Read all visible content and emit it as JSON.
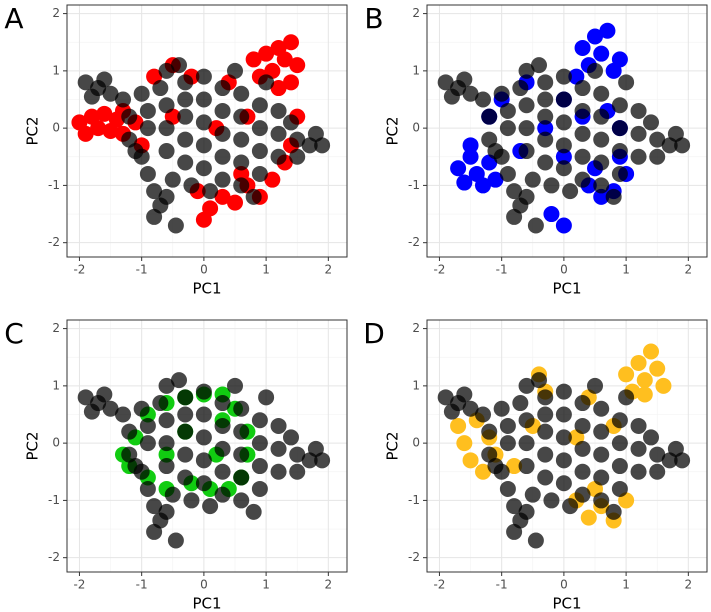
{
  "chart_data": [
    {
      "type": "scatter",
      "title": "A",
      "xlabel": "PC1",
      "ylabel": "PC2",
      "xlim": [
        -2.2,
        2.3
      ],
      "ylim": [
        -2.25,
        2.15
      ],
      "xticks": [
        -2,
        -1,
        0,
        1,
        2
      ],
      "yticks": [
        -2,
        -1,
        0,
        1,
        2
      ],
      "grid": true,
      "series": [
        {
          "color": "#ff0000",
          "opacity": 1,
          "x": [
            -2.0,
            -1.9,
            -1.8,
            -1.7,
            -1.6,
            -1.5,
            -1.4,
            -1.3,
            -1.3,
            -1.1,
            0.8,
            0.9,
            1.0,
            1.1,
            1.2,
            1.3,
            1.4,
            1.5,
            1.2,
            1.4,
            0.1,
            0.0,
            0.3,
            0.5,
            0.7,
            0.9,
            1.1,
            1.3,
            1.4,
            1.5,
            -0.1,
            0.6,
            -0.8,
            -0.5,
            -0.2,
            0.4,
            -0.5,
            0.2,
            0.7,
            -1.0
          ],
          "values": [
            0.1,
            -0.1,
            0.2,
            0.0,
            0.25,
            -0.05,
            0.15,
            0.3,
            -0.1,
            0.1,
            1.2,
            0.9,
            1.3,
            1.0,
            1.4,
            1.2,
            1.5,
            1.1,
            0.7,
            0.8,
            -1.4,
            -1.6,
            -1.2,
            -1.3,
            -1.0,
            -1.2,
            -0.9,
            -0.6,
            -0.3,
            0.2,
            -1.1,
            -0.8,
            0.9,
            1.1,
            0.9,
            0.8,
            0.2,
            0.0,
            0.2,
            -0.3
          ]
        },
        {
          "color": "#000000",
          "opacity": 0.72,
          "x": [
            -1.9,
            -1.7,
            -1.8,
            -1.5,
            -1.6,
            -1.3,
            -1.2,
            -1.2,
            -1.0,
            -0.9,
            -0.8,
            -0.7,
            -0.8,
            -0.6,
            -0.5,
            -1.0,
            -0.9,
            -0.9,
            -0.7,
            -0.6,
            -0.4,
            -0.3,
            -0.6,
            -0.6,
            -0.6,
            -0.3,
            -0.3,
            -0.3,
            -0.3,
            0.0,
            0.0,
            0.0,
            0.0,
            0.0,
            0.3,
            0.3,
            0.3,
            0.3,
            0.3,
            0.5,
            0.6,
            0.6,
            0.6,
            0.6,
            0.6,
            0.8,
            0.9,
            0.9,
            0.9,
            0.9,
            1.0,
            1.2,
            1.2,
            1.2,
            1.5,
            1.5,
            1.7,
            1.9,
            1.8,
            1.4,
            -0.2,
            0.1,
            -1.1,
            -0.45
          ],
          "values": [
            0.8,
            0.7,
            0.55,
            0.6,
            0.85,
            0.5,
            0.2,
            -0.2,
            -0.5,
            -0.8,
            -1.1,
            -1.35,
            -1.55,
            -1.2,
            -0.9,
            0.6,
            0.3,
            0.0,
            0.7,
            1.0,
            1.1,
            0.8,
            0.4,
            0.0,
            -0.4,
            -0.6,
            -0.2,
            0.2,
            0.5,
            0.9,
            0.5,
            0.1,
            -0.3,
            -0.7,
            -0.9,
            -0.5,
            -0.1,
            0.3,
            0.7,
            1.0,
            0.6,
            0.2,
            -0.2,
            -0.6,
            -1.0,
            -1.2,
            -0.8,
            -0.4,
            0.0,
            0.4,
            0.8,
            0.3,
            -0.1,
            -0.5,
            -0.2,
            -0.5,
            -0.3,
            -0.3,
            -0.1,
            0.1,
            -1.0,
            -1.1,
            -0.4,
            -1.7
          ]
        }
      ]
    },
    {
      "type": "scatter",
      "title": "B",
      "xlabel": "PC1",
      "ylabel": "PC2",
      "xlim": [
        -2.2,
        2.3
      ],
      "ylim": [
        -2.25,
        2.15
      ],
      "xticks": [
        -2,
        -1,
        0,
        1,
        2
      ],
      "yticks": [
        -2,
        -1,
        0,
        1,
        2
      ],
      "grid": true,
      "series": [
        {
          "color": "#0000ff",
          "opacity": 1,
          "x": [
            -1.7,
            -1.6,
            -1.5,
            -1.4,
            -1.3,
            -1.2,
            -1.1,
            -1.5,
            0.3,
            0.5,
            0.6,
            0.7,
            0.4,
            0.8,
            0.2,
            0.9,
            0.4,
            0.6,
            0.8,
            1.0,
            0.9,
            0.5,
            -0.2,
            0.0,
            -1.0,
            -0.6,
            0.0,
            -0.3,
            0.3,
            -0.7,
            0.0,
            0.7,
            -1.2,
            0.9
          ],
          "values": [
            -0.7,
            -0.95,
            -0.5,
            -0.8,
            -1.0,
            -0.6,
            -0.9,
            -0.3,
            1.4,
            1.6,
            1.3,
            1.7,
            1.1,
            1.0,
            0.9,
            1.2,
            -1.0,
            -1.2,
            -1.1,
            -0.8,
            -0.5,
            -0.7,
            -1.5,
            -1.7,
            0.5,
            0.8,
            0.5,
            0.0,
            0.2,
            -0.4,
            -0.5,
            0.3,
            0.2,
            0.0
          ]
        },
        {
          "color": "#000000",
          "opacity": 0.72,
          "x": [
            -1.9,
            -1.7,
            -1.8,
            -1.5,
            -1.6,
            -1.3,
            -1.2,
            -1.2,
            -1.0,
            -0.9,
            -0.8,
            -0.7,
            -0.8,
            -0.6,
            -0.5,
            -1.0,
            -0.9,
            -0.9,
            -0.7,
            -0.6,
            -0.4,
            -0.3,
            -0.6,
            -0.6,
            -0.6,
            -0.3,
            -0.3,
            -0.3,
            -0.3,
            0.0,
            0.0,
            0.0,
            0.0,
            0.0,
            0.3,
            0.3,
            0.3,
            0.3,
            0.3,
            0.5,
            0.6,
            0.6,
            0.6,
            0.6,
            0.6,
            0.8,
            0.9,
            0.9,
            0.9,
            0.9,
            1.0,
            1.2,
            1.2,
            1.2,
            1.5,
            1.5,
            1.7,
            1.9,
            1.8,
            1.4,
            -0.2,
            0.1,
            -1.1,
            -0.45
          ],
          "values": [
            0.8,
            0.7,
            0.55,
            0.6,
            0.85,
            0.5,
            0.2,
            -0.2,
            -0.5,
            -0.8,
            -1.1,
            -1.35,
            -1.55,
            -1.2,
            -0.9,
            0.6,
            0.3,
            0.0,
            0.7,
            1.0,
            1.1,
            0.8,
            0.4,
            0.0,
            -0.4,
            -0.6,
            -0.2,
            0.2,
            0.5,
            0.9,
            0.5,
            0.1,
            -0.3,
            -0.7,
            -0.9,
            -0.5,
            -0.1,
            0.3,
            0.7,
            1.0,
            0.6,
            0.2,
            -0.2,
            -0.6,
            -1.0,
            -1.2,
            -0.8,
            -0.4,
            0.0,
            0.4,
            0.8,
            0.3,
            -0.1,
            -0.5,
            -0.2,
            -0.5,
            -0.3,
            -0.3,
            -0.1,
            0.1,
            -1.0,
            -1.1,
            -0.4,
            -1.7
          ]
        }
      ]
    },
    {
      "type": "scatter",
      "title": "C",
      "xlabel": "PC1",
      "ylabel": "PC2",
      "xlim": [
        -2.2,
        2.3
      ],
      "ylim": [
        -2.25,
        2.15
      ],
      "xticks": [
        -2,
        -1,
        0,
        1,
        2
      ],
      "yticks": [
        -2,
        -1,
        0,
        1,
        2
      ],
      "grid": true,
      "series": [
        {
          "color": "#11cc11",
          "opacity": 1,
          "x": [
            -1.3,
            -1.2,
            -1.1,
            -0.9,
            -0.6,
            -0.3,
            0.0,
            0.3,
            0.5,
            0.7,
            0.7,
            0.6,
            0.4,
            0.1,
            -0.2,
            -0.6,
            -0.9,
            -0.3,
            0.2,
            -0.6,
            0.3
          ],
          "values": [
            -0.2,
            -0.4,
            0.1,
            0.5,
            0.7,
            0.8,
            0.85,
            0.85,
            0.6,
            0.2,
            -0.2,
            -0.6,
            -0.8,
            -0.8,
            -0.7,
            -0.8,
            -0.6,
            0.2,
            -0.2,
            -0.2,
            0.4
          ]
        },
        {
          "color": "#000000",
          "opacity": 0.72,
          "x": [
            -1.9,
            -1.7,
            -1.8,
            -1.5,
            -1.6,
            -1.3,
            -1.2,
            -1.2,
            -1.0,
            -0.9,
            -0.8,
            -0.7,
            -0.8,
            -0.6,
            -0.5,
            -1.0,
            -0.9,
            -0.9,
            -0.7,
            -0.6,
            -0.4,
            -0.3,
            -0.6,
            -0.6,
            -0.6,
            -0.3,
            -0.3,
            -0.3,
            -0.3,
            0.0,
            0.0,
            0.0,
            0.0,
            0.0,
            0.3,
            0.3,
            0.3,
            0.3,
            0.3,
            0.5,
            0.6,
            0.6,
            0.6,
            0.6,
            0.6,
            0.8,
            0.9,
            0.9,
            0.9,
            0.9,
            1.0,
            1.2,
            1.2,
            1.2,
            1.5,
            1.5,
            1.7,
            1.9,
            1.8,
            1.4,
            -0.2,
            0.1,
            -1.1,
            -0.45
          ],
          "values": [
            0.8,
            0.7,
            0.55,
            0.6,
            0.85,
            0.5,
            0.2,
            -0.2,
            -0.5,
            -0.8,
            -1.1,
            -1.35,
            -1.55,
            -1.2,
            -0.9,
            0.6,
            0.3,
            0.0,
            0.7,
            1.0,
            1.1,
            0.8,
            0.4,
            0.0,
            -0.4,
            -0.6,
            -0.2,
            0.2,
            0.5,
            0.9,
            0.5,
            0.1,
            -0.3,
            -0.7,
            -0.9,
            -0.5,
            -0.1,
            0.3,
            0.7,
            1.0,
            0.6,
            0.2,
            -0.2,
            -0.6,
            -1.0,
            -1.2,
            -0.8,
            -0.4,
            0.0,
            0.4,
            0.8,
            0.3,
            -0.1,
            -0.5,
            -0.2,
            -0.5,
            -0.3,
            -0.3,
            -0.1,
            0.1,
            -1.0,
            -1.1,
            -0.4,
            -1.7
          ]
        }
      ]
    },
    {
      "type": "scatter",
      "title": "D",
      "xlabel": "PC1",
      "ylabel": "PC2",
      "xlim": [
        -2.2,
        2.3
      ],
      "ylim": [
        -2.25,
        2.15
      ],
      "xticks": [
        -2,
        -1,
        0,
        1,
        2
      ],
      "yticks": [
        -2,
        -1,
        0,
        1,
        2
      ],
      "grid": true,
      "series": [
        {
          "color": "#ffbf1f",
          "opacity": 1,
          "x": [
            1.0,
            1.1,
            1.2,
            1.3,
            1.4,
            1.5,
            1.6,
            1.3,
            -1.7,
            -1.6,
            -1.5,
            -1.4,
            -1.3,
            -1.2,
            -1.1,
            0.2,
            0.4,
            0.6,
            0.8,
            1.0,
            0.5,
            -0.4,
            -0.3,
            0.4,
            -0.5,
            0.2,
            0.8,
            -0.8
          ],
          "values": [
            1.2,
            0.9,
            1.4,
            1.1,
            1.6,
            1.3,
            1.0,
            0.85,
            0.3,
            0.0,
            -0.3,
            0.4,
            -0.5,
            0.1,
            -0.2,
            -1.0,
            -1.3,
            -1.1,
            -1.35,
            -1.0,
            -0.8,
            1.2,
            0.9,
            0.8,
            0.3,
            0.1,
            0.3,
            -0.4
          ]
        },
        {
          "color": "#000000",
          "opacity": 0.72,
          "x": [
            -1.9,
            -1.7,
            -1.8,
            -1.5,
            -1.6,
            -1.3,
            -1.2,
            -1.2,
            -1.0,
            -0.9,
            -0.8,
            -0.7,
            -0.8,
            -0.6,
            -0.5,
            -1.0,
            -0.9,
            -0.9,
            -0.7,
            -0.6,
            -0.4,
            -0.3,
            -0.6,
            -0.6,
            -0.6,
            -0.3,
            -0.3,
            -0.3,
            -0.3,
            0.0,
            0.0,
            0.0,
            0.0,
            0.0,
            0.3,
            0.3,
            0.3,
            0.3,
            0.3,
            0.5,
            0.6,
            0.6,
            0.6,
            0.6,
            0.6,
            0.8,
            0.9,
            0.9,
            0.9,
            0.9,
            1.0,
            1.2,
            1.2,
            1.2,
            1.5,
            1.5,
            1.7,
            1.9,
            1.8,
            1.4,
            -0.2,
            0.1,
            -1.1,
            -0.45
          ],
          "values": [
            0.8,
            0.7,
            0.55,
            0.6,
            0.85,
            0.5,
            0.2,
            -0.2,
            -0.5,
            -0.8,
            -1.1,
            -1.35,
            -1.55,
            -1.2,
            -0.9,
            0.6,
            0.3,
            0.0,
            0.7,
            1.0,
            1.1,
            0.8,
            0.4,
            0.0,
            -0.4,
            -0.6,
            -0.2,
            0.2,
            0.5,
            0.9,
            0.5,
            0.1,
            -0.3,
            -0.7,
            -0.9,
            -0.5,
            -0.1,
            0.3,
            0.7,
            1.0,
            0.6,
            0.2,
            -0.2,
            -0.6,
            -1.0,
            -1.2,
            -0.8,
            -0.4,
            0.0,
            0.4,
            0.8,
            0.3,
            -0.1,
            -0.5,
            -0.2,
            -0.5,
            -0.3,
            -0.3,
            -0.1,
            0.1,
            -1.0,
            -1.1,
            -0.4,
            -1.7
          ]
        }
      ]
    }
  ]
}
